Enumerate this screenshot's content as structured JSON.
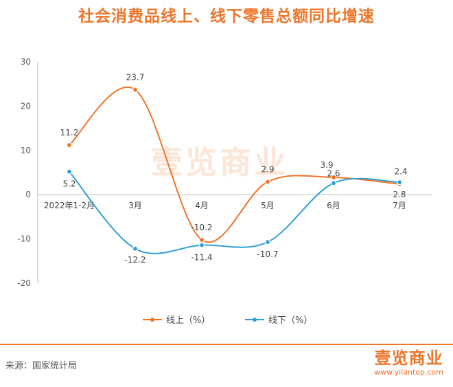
{
  "title": "社会消费品线上、线下零售总额同比增速",
  "watermark": "壹览商业",
  "source": "来源：国家统计局",
  "logo": {
    "text": "壹览商业",
    "url": "www.yilantop.com"
  },
  "colors": {
    "online": "#F07427",
    "offline": "#2F9ED6",
    "accent": "#F07427"
  },
  "chart_data": {
    "type": "line",
    "categories": [
      "2022年1-2月",
      "3月",
      "4月",
      "5月",
      "6月",
      "7月"
    ],
    "series": [
      {
        "name": "线上（%）",
        "values": [
          11.2,
          23.7,
          -10.2,
          2.9,
          3.9,
          2.4
        ],
        "color": "#F07427"
      },
      {
        "name": "线下（%）",
        "values": [
          5.2,
          -12.2,
          -11.4,
          -10.7,
          2.6,
          2.8
        ],
        "color": "#2F9ED6"
      }
    ],
    "ylim": [
      -20,
      30
    ],
    "yticks": [
      30,
      20,
      10,
      0,
      -10,
      -20
    ],
    "smooth": true,
    "legend": "bottom"
  }
}
